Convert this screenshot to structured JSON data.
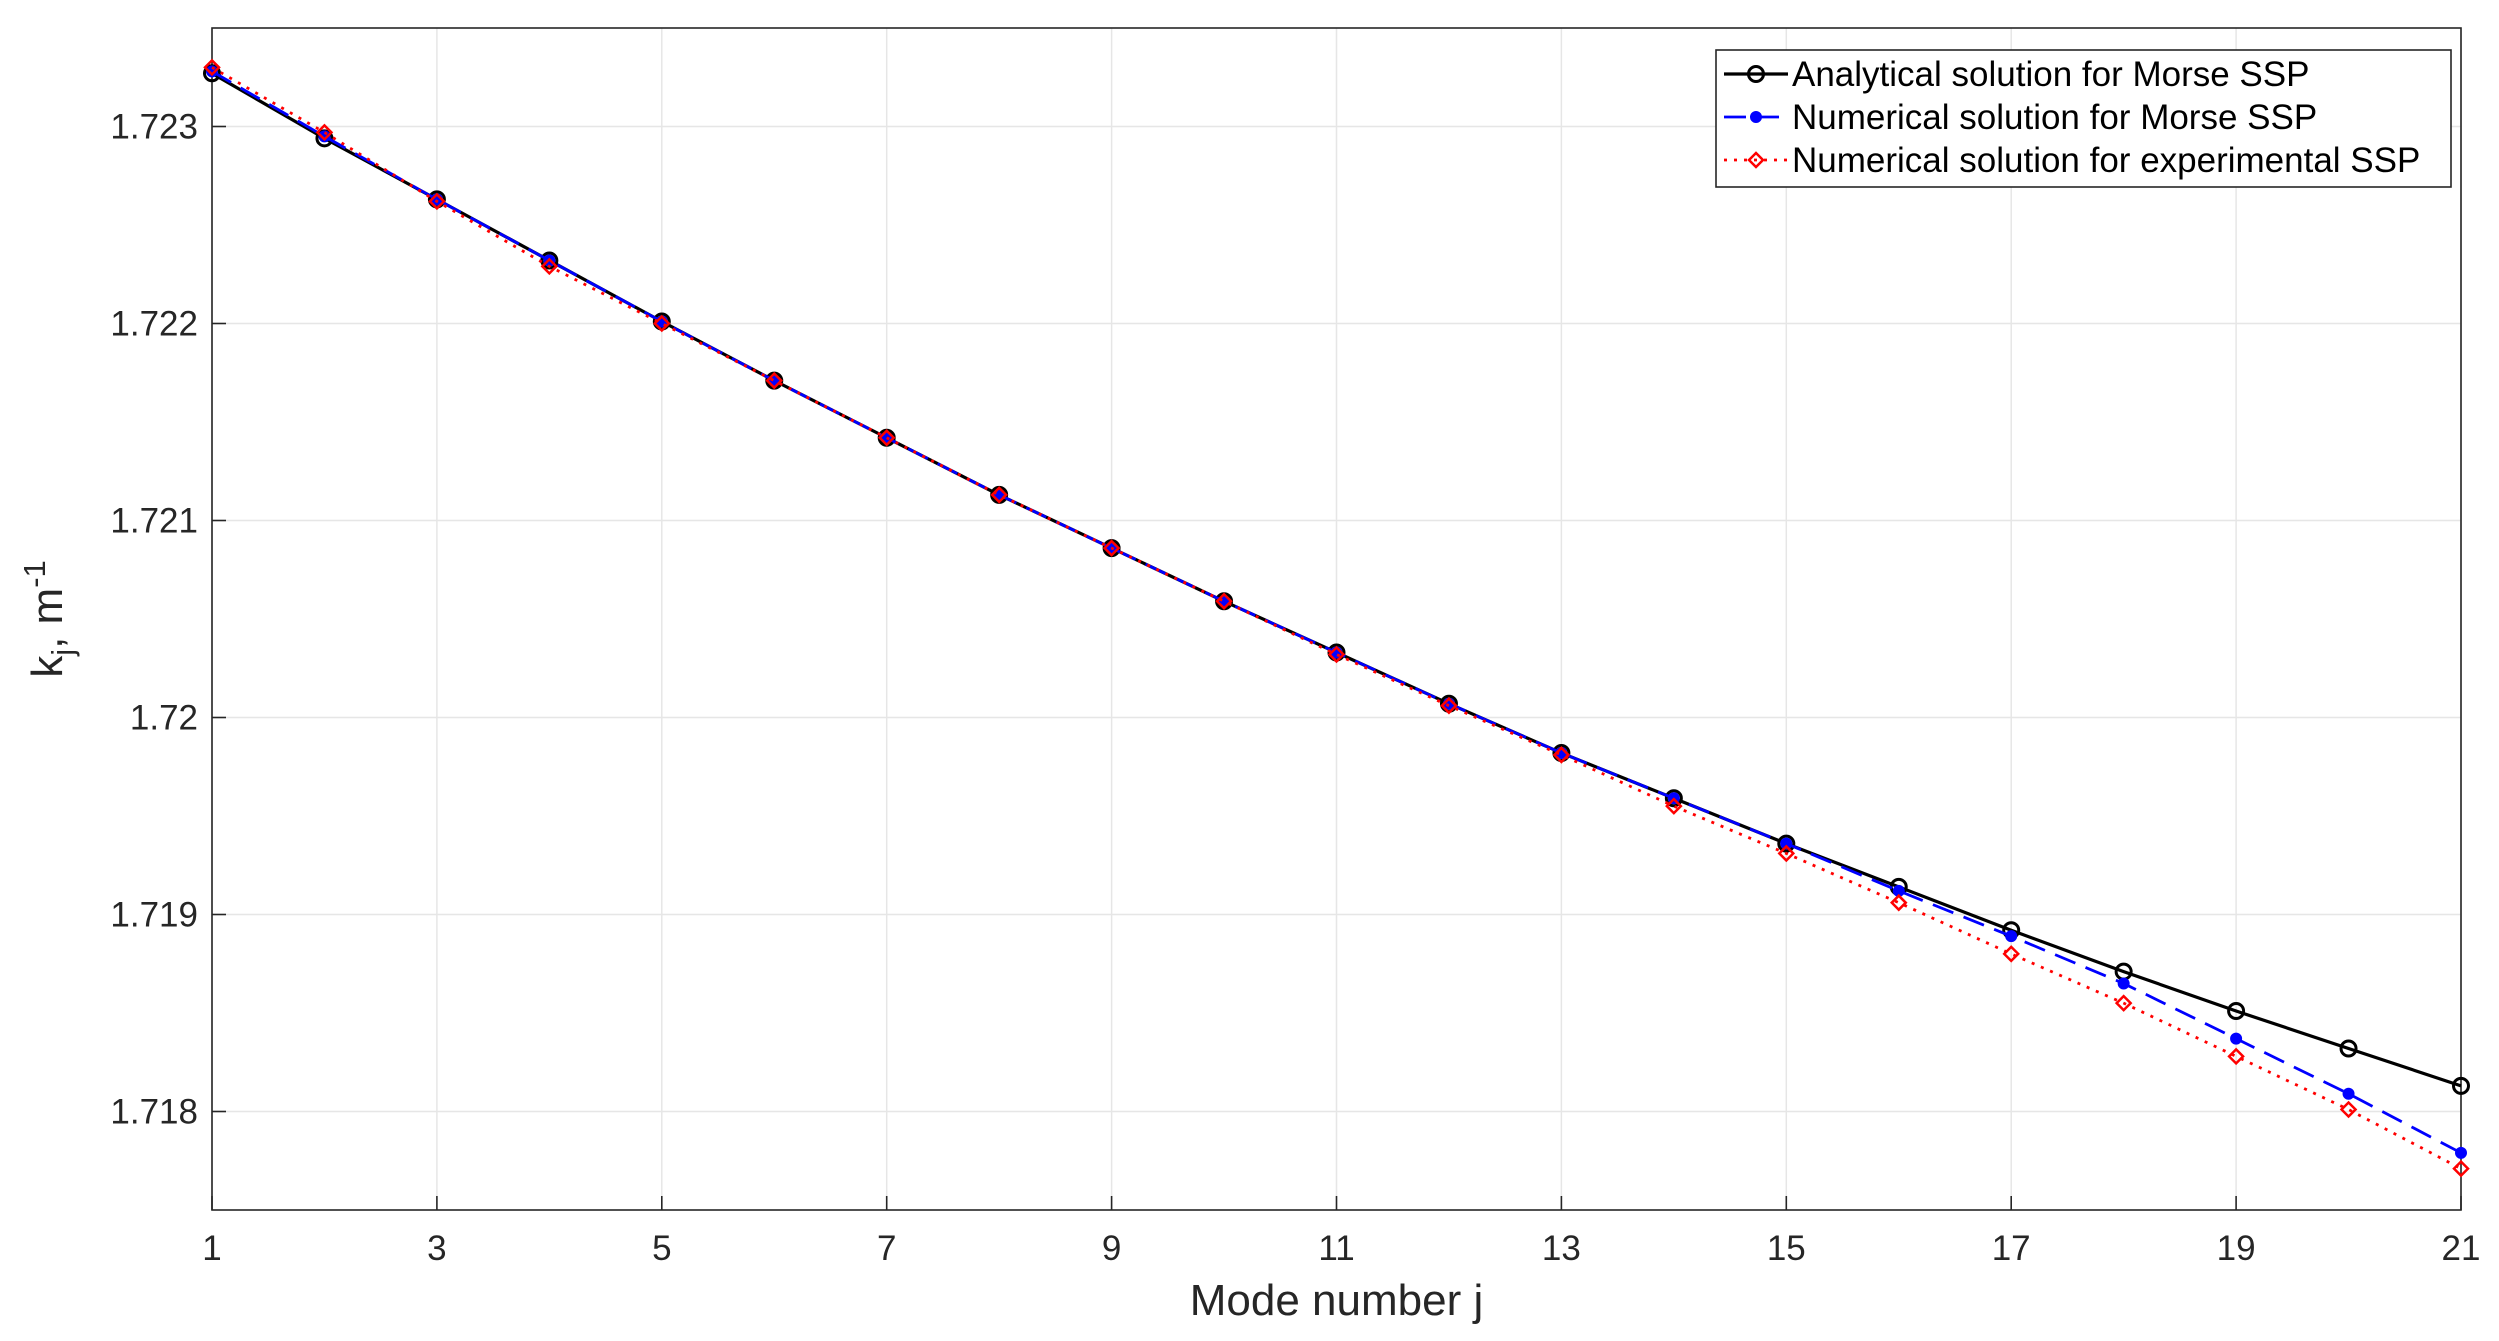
{
  "chart_data": {
    "type": "line",
    "xlabel": "Mode number j",
    "ylabel": {
      "base": "k",
      "sub": "j",
      "unit": ", m",
      "sup": "-1"
    },
    "xlim": [
      1,
      21
    ],
    "ylim": [
      1.7175,
      1.7235
    ],
    "xticks": [
      1,
      3,
      5,
      7,
      9,
      11,
      13,
      15,
      17,
      19,
      21
    ],
    "xtick_labels": [
      "1",
      "3",
      "5",
      "7",
      "9",
      "11",
      "13",
      "15",
      "17",
      "19",
      "21"
    ],
    "yticks": [
      1.718,
      1.719,
      1.72,
      1.721,
      1.722,
      1.723
    ],
    "ytick_labels": [
      "1.718",
      "1.719",
      "1.72",
      "1.721",
      "1.722",
      "1.723"
    ],
    "grid": true,
    "legend_position": "top-right",
    "x": [
      1,
      2,
      3,
      4,
      5,
      6,
      7,
      8,
      9,
      10,
      11,
      12,
      13,
      14,
      15,
      16,
      17,
      18,
      19,
      20,
      21
    ],
    "series": [
      {
        "name": "Analytical solution for Morse SSP",
        "color": "#000000",
        "line": "solid",
        "marker": "circle",
        "values": [
          1.72327,
          1.72294,
          1.72263,
          1.72232,
          1.72201,
          1.72171,
          1.72142,
          1.72113,
          1.72086,
          1.72059,
          1.72033,
          1.72007,
          1.71982,
          1.71959,
          1.71936,
          1.71914,
          1.71892,
          1.71871,
          1.71851,
          1.71832,
          1.71813
        ]
      },
      {
        "name": "Numerical solution for Morse SSP",
        "color": "#0000ff",
        "line": "dashed",
        "marker": "dot",
        "values": [
          1.72328,
          1.72295,
          1.72263,
          1.72232,
          1.72201,
          1.72171,
          1.72142,
          1.72113,
          1.72086,
          1.72059,
          1.72033,
          1.72007,
          1.71982,
          1.71959,
          1.71936,
          1.71912,
          1.71889,
          1.71865,
          1.71837,
          1.71809,
          1.71779
        ]
      },
      {
        "name": "Numerical solution for experimental SSP",
        "color": "#ff0000",
        "line": "dotted",
        "marker": "diamond",
        "values": [
          1.7233,
          1.72297,
          1.72262,
          1.72229,
          1.722,
          1.72171,
          1.72142,
          1.72113,
          1.72086,
          1.72059,
          1.72032,
          1.72006,
          1.71981,
          1.71955,
          1.71931,
          1.71906,
          1.7188,
          1.71855,
          1.71828,
          1.71801,
          1.71771
        ]
      }
    ]
  }
}
